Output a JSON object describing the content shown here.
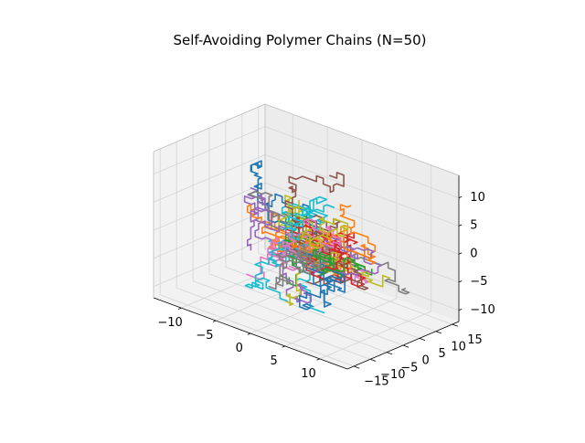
{
  "chart_data": {
    "type": "line",
    "projection": "3d",
    "title": "Self-Avoiding Polymer Chains (N=50)",
    "xlabel": "",
    "ylabel": "",
    "zlabel": "",
    "xlim": [
      -14,
      14
    ],
    "ylim": [
      -17,
      17
    ],
    "zlim": [
      -12,
      14
    ],
    "xticks": [
      -10,
      -5,
      0,
      5,
      10
    ],
    "yticks": [
      -15,
      -10,
      -5,
      0,
      5,
      10,
      15
    ],
    "zticks": [
      -10,
      -5,
      0,
      5,
      10
    ],
    "grid": true,
    "legend": "none",
    "chain_count": 50,
    "chain_length": 40,
    "step_size": 1,
    "palette": [
      "#1f77b4",
      "#ff7f0e",
      "#2ca02c",
      "#d62728",
      "#9467bd",
      "#8c564b",
      "#e377c2",
      "#7f7f7f",
      "#bcbd22",
      "#17becf"
    ]
  }
}
